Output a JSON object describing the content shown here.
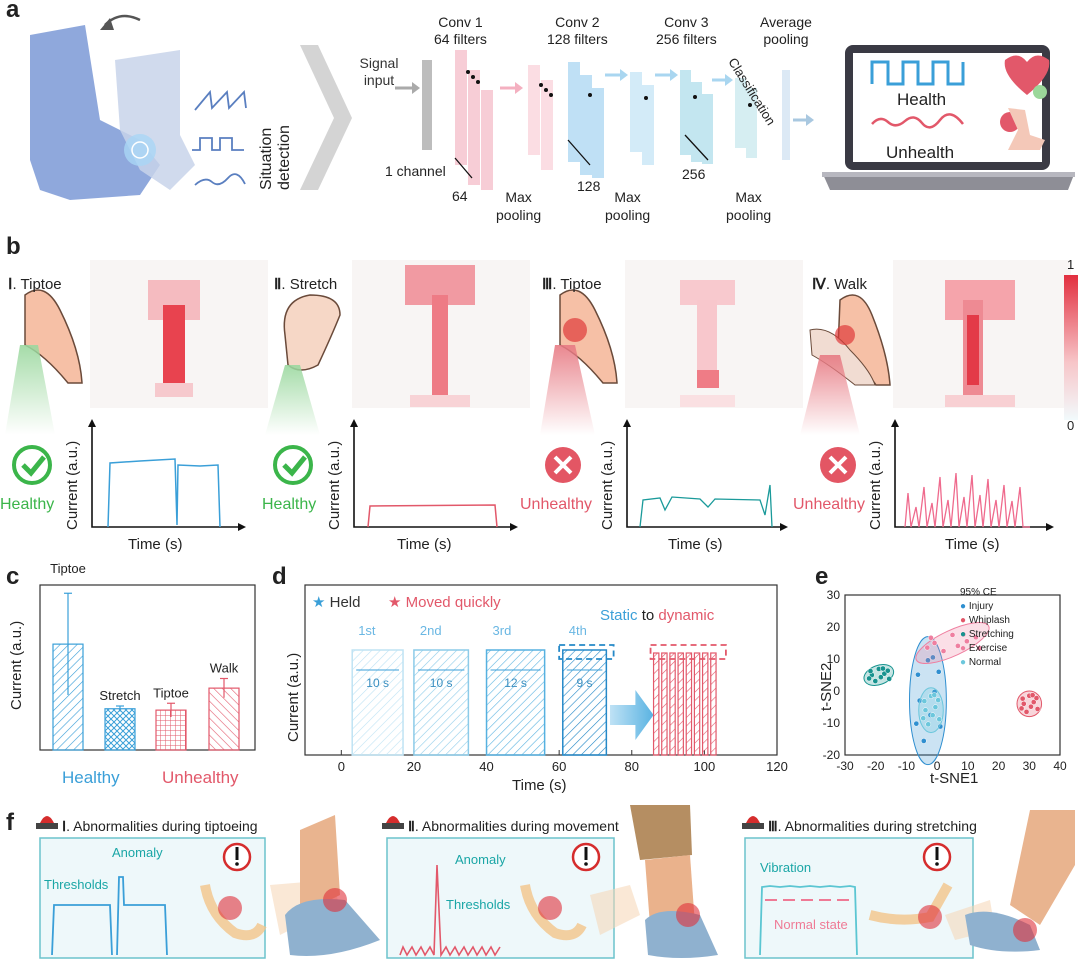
{
  "panel_labels": {
    "a": "a",
    "b": "b",
    "c": "c",
    "d": "d",
    "e": "e",
    "f": "f"
  },
  "colors": {
    "blue": "#3a9fd8",
    "red": "#e2586a",
    "green": "#3bb54a",
    "teal": "#1a9a9a",
    "gray": "#555555"
  },
  "panel_a": {
    "situation_detection": "Situation detection",
    "signal_input": "Signal input",
    "one_channel": "1 channel",
    "conv1_title": "Conv 1",
    "conv1_filters": "64 filters",
    "conv2_title": "Conv 2",
    "conv2_filters": "128 filters",
    "conv3_title": "Conv 3",
    "conv3_filters": "256 filters",
    "avg_pool_title": "Average",
    "avg_pool_sub": "pooling",
    "classification": "Classification",
    "n64": "64",
    "n128": "128",
    "n256": "256",
    "maxpool_1": "Max",
    "maxpool_2": "pooling",
    "health": "Health",
    "unhealth": "Unhealth"
  },
  "panel_b": {
    "scale_max": "1",
    "scale_min": "0",
    "xlabel": "Time (s)",
    "ylabel": "Current (a.u.)",
    "cases": [
      {
        "numeral": "Ⅰ",
        "name": ". Tiptoe",
        "status": "Healthy"
      },
      {
        "numeral": "Ⅱ",
        "name": ". Stretch",
        "status": "Healthy"
      },
      {
        "numeral": "Ⅲ",
        "name": ". Tiptoe",
        "status": "Unhealthy"
      },
      {
        "numeral": "Ⅳ",
        "name": ". Walk",
        "status": "Unhealthy"
      }
    ]
  },
  "chart_data": [
    {
      "type": "bar",
      "ylabel": "Current (a.u.)",
      "categories": [
        "Tiptoe",
        "Stretch",
        "Tiptoe",
        "Walk"
      ],
      "values": [
        0.77,
        0.3,
        0.29,
        0.45
      ],
      "errors": [
        0.37,
        0.02,
        0.05,
        0.07
      ],
      "groups": [
        {
          "name": "Healthy",
          "categories": [
            0,
            1
          ]
        },
        {
          "name": "Unhealthy",
          "categories": [
            2,
            3
          ]
        }
      ]
    },
    {
      "type": "line",
      "xlabel": "Time (s)",
      "ylabel": "Current (a.u.)",
      "xlim": [
        -10,
        120
      ],
      "xticks": [
        0,
        20,
        40,
        60,
        80,
        100,
        120
      ],
      "legend": [
        "Held",
        "Moved quickly"
      ],
      "segments": [
        {
          "label": "1st",
          "duration": "10 s",
          "start": 3,
          "end": 17
        },
        {
          "label": "2nd",
          "duration": "10 s",
          "start": 20,
          "end": 35
        },
        {
          "label": "3rd",
          "duration": "12 s",
          "start": 40,
          "end": 56
        },
        {
          "label": "4th",
          "duration": "9 s",
          "start": 61,
          "end": 73
        }
      ],
      "dynamic": {
        "start": 86,
        "end": 104,
        "peaks": 8
      },
      "annotation_static": "Static",
      "annotation_to": "to",
      "annotation_dynamic": "dynamic"
    },
    {
      "type": "scatter",
      "xlabel": "t-SNE1",
      "ylabel": "t-SNE2",
      "xlim": [
        -30,
        40
      ],
      "ylim": [
        -20,
        30
      ],
      "xticks": [
        -30,
        -20,
        -10,
        0,
        10,
        20,
        30,
        40
      ],
      "yticks": [
        -20,
        -10,
        0,
        10,
        20,
        30
      ],
      "legend_title": "95% CE",
      "series": [
        {
          "name": "Injury",
          "color": "#2f8fd0",
          "center": [
            -3,
            -3
          ]
        },
        {
          "name": "Whiplash",
          "color": "#e2586a",
          "center": [
            30,
            -4
          ]
        },
        {
          "name": "Stretching",
          "color": "#17938f",
          "center": [
            -19,
            5
          ]
        },
        {
          "name": "Exercise",
          "color": "#ef7fa0",
          "center": [
            5,
            15
          ]
        },
        {
          "name": "Normal",
          "color": "#6cc7dc",
          "center": [
            -2,
            -6
          ]
        }
      ]
    }
  ],
  "panel_f": {
    "items": [
      {
        "numeral": "Ⅰ",
        "title": ". Abnormalities during tiptoeing",
        "label1": "Anomaly",
        "label2": "Thresholds"
      },
      {
        "numeral": "Ⅱ",
        "title": ". Abnormalities during movement",
        "label1": "Anomaly",
        "label2": "Thresholds"
      },
      {
        "numeral": "Ⅲ",
        "title": ". Abnormalities during stretching",
        "label1": "Vibration",
        "label2": "Normal state"
      }
    ]
  }
}
